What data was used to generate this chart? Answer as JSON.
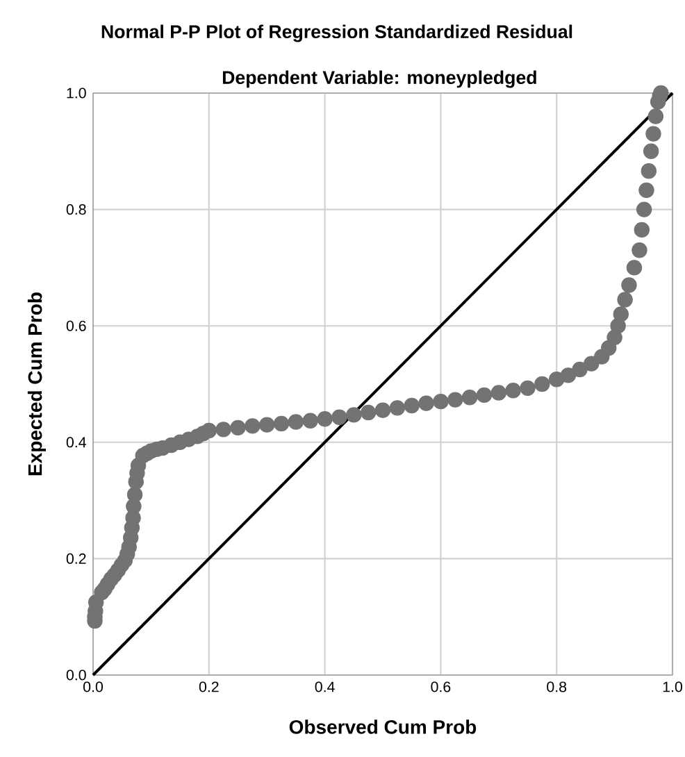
{
  "chart_data": {
    "type": "scatter",
    "title": "Normal P-P Plot of Regression Standardized Residual",
    "subtitle": "Dependent Variable: moneypledged",
    "xlabel": "Observed Cum Prob",
    "ylabel": "Expected Cum Prob",
    "xlim": [
      0,
      1
    ],
    "ylim": [
      0,
      1
    ],
    "xticks": [
      {
        "value": 0,
        "label": "0.0"
      },
      {
        "value": 0.2,
        "label": "0.2"
      },
      {
        "value": 0.4,
        "label": "0.4"
      },
      {
        "value": 0.6,
        "label": "0.6"
      },
      {
        "value": 0.8,
        "label": "0.8"
      },
      {
        "value": 1,
        "label": "1.0"
      }
    ],
    "yticks": [
      {
        "value": 0,
        "label": "0.0"
      },
      {
        "value": 0.2,
        "label": "0.2"
      },
      {
        "value": 0.4,
        "label": "0.4"
      },
      {
        "value": 0.6,
        "label": "0.6"
      },
      {
        "value": 0.8,
        "label": "0.8"
      },
      {
        "value": 1,
        "label": "1.0"
      }
    ],
    "grid": true,
    "series": [
      {
        "color": "#737373",
        "marker": "circle",
        "x": [
          0.003,
          0.003,
          0.004,
          0.005,
          0.015,
          0.02,
          0.025,
          0.031,
          0.037,
          0.043,
          0.049,
          0.055,
          0.059,
          0.062,
          0.065,
          0.067,
          0.069,
          0.07,
          0.072,
          0.074,
          0.076,
          0.078,
          0.086,
          0.093,
          0.1,
          0.11,
          0.12,
          0.135,
          0.15,
          0.165,
          0.18,
          0.19,
          0.2,
          0.225,
          0.25,
          0.275,
          0.3,
          0.325,
          0.35,
          0.375,
          0.4,
          0.425,
          0.45,
          0.475,
          0.5,
          0.525,
          0.55,
          0.575,
          0.6,
          0.625,
          0.65,
          0.675,
          0.7,
          0.725,
          0.75,
          0.775,
          0.8,
          0.82,
          0.84,
          0.86,
          0.878,
          0.89,
          0.9,
          0.906,
          0.911,
          0.918,
          0.925,
          0.934,
          0.943,
          0.947,
          0.951,
          0.955,
          0.959,
          0.963,
          0.967,
          0.971,
          0.975,
          0.978,
          0.98
        ],
        "values": [
          0.093,
          0.1,
          0.11,
          0.125,
          0.142,
          0.148,
          0.156,
          0.165,
          0.172,
          0.18,
          0.189,
          0.197,
          0.208,
          0.22,
          0.236,
          0.253,
          0.27,
          0.29,
          0.31,
          0.332,
          0.347,
          0.36,
          0.377,
          0.381,
          0.385,
          0.388,
          0.39,
          0.395,
          0.4,
          0.405,
          0.41,
          0.415,
          0.42,
          0.422,
          0.425,
          0.428,
          0.43,
          0.432,
          0.435,
          0.437,
          0.44,
          0.443,
          0.447,
          0.451,
          0.455,
          0.459,
          0.463,
          0.467,
          0.47,
          0.473,
          0.477,
          0.481,
          0.485,
          0.489,
          0.493,
          0.5,
          0.508,
          0.515,
          0.525,
          0.535,
          0.547,
          0.562,
          0.58,
          0.6,
          0.62,
          0.645,
          0.67,
          0.7,
          0.73,
          0.765,
          0.8,
          0.833,
          0.866,
          0.9,
          0.93,
          0.96,
          0.985,
          0.995,
          1.0
        ]
      },
      {
        "type": "line",
        "color": "#000000",
        "x": [
          0,
          1
        ],
        "values": [
          0,
          1
        ]
      }
    ]
  }
}
